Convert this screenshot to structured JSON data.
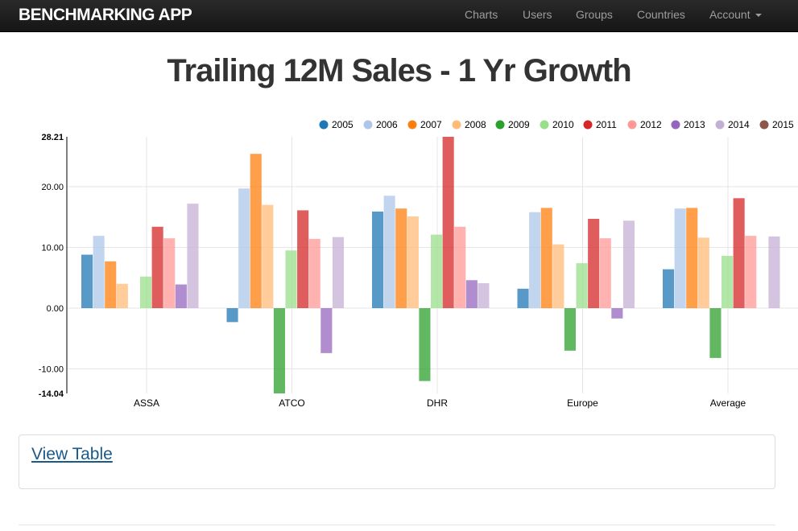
{
  "navbar": {
    "brand": "BENCHMARKING APP",
    "items": [
      "Charts",
      "Users",
      "Groups",
      "Countries",
      "Account"
    ]
  },
  "page": {
    "title": "Trailing 12M Sales - 1 Yr Growth",
    "view_table_label": "View Table"
  },
  "chart_data": {
    "type": "bar",
    "categories": [
      "ASSA",
      "ATCO",
      "DHR",
      "Europe",
      "Average"
    ],
    "ylim": [
      -14.04,
      28.21
    ],
    "yticks": [
      "28.21",
      "20.00",
      "10.00",
      "0.00",
      "-10.00",
      "-14.04"
    ],
    "legend_position": "top-right",
    "grid": true,
    "series": [
      {
        "name": "2005",
        "color": "#1f77b4",
        "values": [
          8.8,
          -2.3,
          15.9,
          3.2,
          6.4
        ]
      },
      {
        "name": "2006",
        "color": "#aec7e8",
        "values": [
          11.9,
          19.7,
          18.5,
          15.8,
          16.4
        ]
      },
      {
        "name": "2007",
        "color": "#ff7f0e",
        "values": [
          7.7,
          25.4,
          16.4,
          16.5,
          16.5
        ]
      },
      {
        "name": "2008",
        "color": "#ffbb78",
        "values": [
          4.0,
          17.0,
          15.1,
          10.5,
          11.6
        ]
      },
      {
        "name": "2009",
        "color": "#2ca02c",
        "values": [
          null,
          -14.04,
          -12.0,
          -7.0,
          -8.2
        ]
      },
      {
        "name": "2010",
        "color": "#98df8a",
        "values": [
          5.2,
          9.5,
          12.1,
          7.4,
          8.6
        ]
      },
      {
        "name": "2011",
        "color": "#d62728",
        "values": [
          13.4,
          16.1,
          28.21,
          14.7,
          18.1
        ]
      },
      {
        "name": "2012",
        "color": "#ff9896",
        "values": [
          11.5,
          11.4,
          13.4,
          11.5,
          11.9
        ]
      },
      {
        "name": "2013",
        "color": "#9467bd",
        "values": [
          3.9,
          -7.4,
          4.6,
          -1.7,
          null
        ]
      },
      {
        "name": "2014",
        "color": "#c5b0d5",
        "values": [
          17.2,
          11.7,
          4.1,
          14.4,
          11.8
        ]
      },
      {
        "name": "2015",
        "color": "#8c564b",
        "values": [
          null,
          null,
          null,
          null,
          null
        ]
      }
    ]
  }
}
